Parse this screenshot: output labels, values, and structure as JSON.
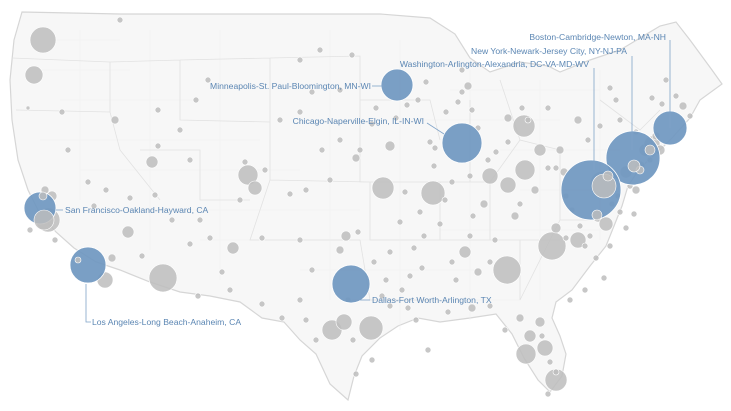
{
  "colors": {
    "highlight": "#6f97c0",
    "other": "#bdbdbd",
    "label": "#5b86b3",
    "land": "#f7f7f7",
    "borders": "#e2e2e2"
  },
  "highlighted_metros": [
    {
      "id": "boston",
      "label": "Boston-Cambridge-Newton, MA-NH"
    },
    {
      "id": "newyork",
      "label": "New York-Newark-Jersey City, NY-NJ-PA"
    },
    {
      "id": "washington",
      "label": "Washington-Arlington-Alexandria, DC-VA-MD-WV"
    },
    {
      "id": "minneapolis",
      "label": "Minneapolis-St. Paul-Bloomington, MN-WI"
    },
    {
      "id": "chicago",
      "label": "Chicago-Naperville-Elgin, IL-IN-WI"
    },
    {
      "id": "sanfrancisco",
      "label": "San Francisco-Oakland-Hayward, CA"
    },
    {
      "id": "losangeles",
      "label": "Los Angeles-Long Beach-Anaheim, CA"
    },
    {
      "id": "dallas",
      "label": "Dallas-Fort Worth-Arlington, TX"
    }
  ]
}
